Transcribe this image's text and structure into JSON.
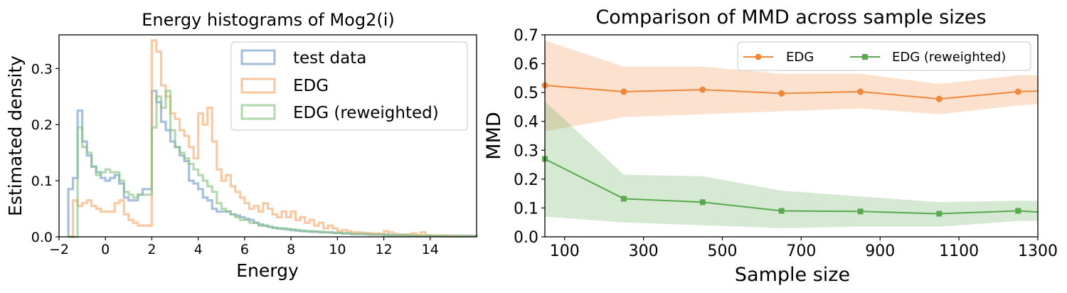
{
  "chart_data": [
    {
      "type": "histogram",
      "title": "Energy histograms of Mog2(i)",
      "xlabel": "Energy",
      "ylabel": "Estimated density",
      "xlim": [
        -2,
        16
      ],
      "ylim": [
        0,
        0.36
      ],
      "xticks": [
        -2,
        0,
        2,
        4,
        6,
        8,
        10,
        12,
        14
      ],
      "xtick_labels": [
        "−2",
        "0",
        "2",
        "4",
        "6",
        "8",
        "10",
        "12",
        "14"
      ],
      "yticks": [
        0.0,
        0.1,
        0.2,
        0.3
      ],
      "ytick_labels": [
        "0.0",
        "0.1",
        "0.2",
        "0.3"
      ],
      "legend_position": "top-right",
      "series": [
        {
          "name": "test data",
          "color": "#6f9ac9",
          "edges": [
            -1.6,
            -1.4,
            -1.2,
            -1.0,
            -0.8,
            -0.6,
            -0.4,
            -0.2,
            0.0,
            0.2,
            0.4,
            0.6,
            0.8,
            1.0,
            1.2,
            1.4,
            1.6,
            1.8,
            2.0,
            2.2,
            2.4,
            2.6,
            2.8,
            3.0,
            3.2,
            3.4,
            3.6,
            3.8,
            4.0,
            4.2,
            4.4,
            4.6,
            4.8,
            5.0,
            5.2,
            5.4,
            5.6,
            5.8,
            6.0,
            6.2,
            6.4,
            6.6,
            6.8,
            7.0,
            7.2,
            7.4,
            7.6,
            7.8,
            8.0,
            8.2,
            8.4,
            8.6,
            8.8,
            9.0,
            9.2,
            9.4,
            9.6,
            9.8,
            10.0,
            10.2,
            10.4,
            10.6,
            10.8,
            11.0,
            11.2,
            11.4,
            11.6,
            11.8,
            12.0,
            12.2,
            12.4,
            12.6,
            12.8,
            13.0,
            13.2,
            13.4,
            13.6,
            13.8,
            14.0,
            14.2,
            14.4,
            14.6,
            14.8,
            15.0,
            15.2,
            15.4,
            15.6,
            15.8,
            16.0
          ],
          "values": [
            0.085,
            0.105,
            0.225,
            0.17,
            0.145,
            0.125,
            0.115,
            0.105,
            0.1,
            0.105,
            0.11,
            0.095,
            0.07,
            0.065,
            0.065,
            0.075,
            0.085,
            0.085,
            0.26,
            0.24,
            0.205,
            0.19,
            0.17,
            0.16,
            0.145,
            0.135,
            0.1,
            0.095,
            0.085,
            0.07,
            0.065,
            0.05,
            0.045,
            0.045,
            0.045,
            0.04,
            0.038,
            0.035,
            0.032,
            0.03,
            0.025,
            0.022,
            0.02,
            0.018,
            0.016,
            0.015,
            0.014,
            0.013,
            0.012,
            0.011,
            0.01,
            0.01,
            0.009,
            0.009,
            0.008,
            0.008,
            0.008,
            0.007,
            0.007,
            0.006,
            0.006,
            0.005,
            0.005,
            0.005,
            0.005,
            0.004,
            0.004,
            0.004,
            0.004,
            0.003,
            0.003,
            0.003,
            0.003,
            0.002,
            0.002,
            0.002,
            0.002,
            0.002,
            0.002,
            0.002,
            0.002,
            0.002,
            0.002,
            0.002,
            0.002,
            0.002,
            0.002,
            0.002
          ]
        },
        {
          "name": "EDG",
          "color": "#f3a86a",
          "edges": [
            -1.6,
            -1.4,
            -1.2,
            -1.0,
            -0.8,
            -0.6,
            -0.4,
            -0.2,
            0.0,
            0.2,
            0.4,
            0.6,
            0.8,
            1.0,
            1.2,
            1.4,
            1.6,
            1.8,
            2.0,
            2.2,
            2.4,
            2.6,
            2.8,
            3.0,
            3.2,
            3.4,
            3.6,
            3.8,
            4.0,
            4.2,
            4.4,
            4.6,
            4.8,
            5.0,
            5.2,
            5.4,
            5.6,
            5.8,
            6.0,
            6.2,
            6.4,
            6.6,
            6.8,
            7.0,
            7.2,
            7.4,
            7.6,
            7.8,
            8.0,
            8.2,
            8.4,
            8.6,
            8.8,
            9.0,
            9.2,
            9.4,
            9.6,
            9.8,
            10.0,
            10.2,
            10.4,
            10.6,
            10.8,
            11.0,
            11.2,
            11.4,
            11.6,
            11.8,
            12.0,
            12.2,
            12.4,
            12.6,
            12.8,
            13.0,
            13.2,
            13.4,
            13.6,
            13.8,
            14.0,
            14.2,
            14.4,
            14.6,
            14.8,
            15.0,
            15.2,
            15.4,
            15.6,
            15.8,
            16.0
          ],
          "values": [
            0.0,
            0.065,
            0.055,
            0.06,
            0.065,
            0.055,
            0.05,
            0.045,
            0.045,
            0.045,
            0.06,
            0.065,
            0.04,
            0.03,
            0.025,
            0.02,
            0.02,
            0.02,
            0.35,
            0.33,
            0.27,
            0.25,
            0.22,
            0.21,
            0.19,
            0.18,
            0.16,
            0.14,
            0.22,
            0.2,
            0.23,
            0.17,
            0.12,
            0.1,
            0.11,
            0.09,
            0.08,
            0.07,
            0.06,
            0.05,
            0.055,
            0.045,
            0.06,
            0.05,
            0.04,
            0.035,
            0.045,
            0.035,
            0.045,
            0.03,
            0.035,
            0.025,
            0.03,
            0.02,
            0.025,
            0.015,
            0.02,
            0.015,
            0.01,
            0.012,
            0.01,
            0.008,
            0.008,
            0.007,
            0.007,
            0.006,
            0.006,
            0.005,
            0.01,
            0.008,
            0.005,
            0.004,
            0.004,
            0.004,
            0.006,
            0.003,
            0.008,
            0.003,
            0.002,
            0.002,
            0.002,
            0.002,
            0.002,
            0.001,
            0.001,
            0.001,
            0.001,
            0.001
          ]
        },
        {
          "name": "EDG (reweighted)",
          "color": "#87c481",
          "edges": [
            -1.6,
            -1.4,
            -1.2,
            -1.0,
            -0.8,
            -0.6,
            -0.4,
            -0.2,
            0.0,
            0.2,
            0.4,
            0.6,
            0.8,
            1.0,
            1.2,
            1.4,
            1.6,
            1.8,
            2.0,
            2.2,
            2.4,
            2.6,
            2.8,
            3.0,
            3.2,
            3.4,
            3.6,
            3.8,
            4.0,
            4.2,
            4.4,
            4.6,
            4.8,
            5.0,
            5.2,
            5.4,
            5.6,
            5.8,
            6.0,
            6.2,
            6.4,
            6.6,
            6.8,
            7.0,
            7.2,
            7.4,
            7.6,
            7.8,
            8.0,
            8.2,
            8.4,
            8.6,
            8.8,
            9.0,
            9.2,
            9.4,
            9.6,
            9.8,
            10.0,
            10.2,
            10.4,
            10.6,
            10.8,
            11.0,
            11.2,
            11.4,
            11.6,
            11.8,
            12.0,
            12.2,
            12.4,
            12.6,
            12.8,
            13.0,
            13.2,
            13.4,
            13.6,
            13.8,
            14.0,
            14.2,
            14.4,
            14.6,
            14.8,
            15.0,
            15.2,
            15.4,
            15.6,
            15.8,
            16.0
          ],
          "values": [
            0.0,
            0.0,
            0.195,
            0.16,
            0.15,
            0.125,
            0.11,
            0.115,
            0.12,
            0.115,
            0.115,
            0.1,
            0.08,
            0.075,
            0.07,
            0.075,
            0.075,
            0.075,
            0.195,
            0.25,
            0.23,
            0.26,
            0.19,
            0.16,
            0.15,
            0.14,
            0.13,
            0.12,
            0.11,
            0.1,
            0.09,
            0.08,
            0.06,
            0.05,
            0.045,
            0.04,
            0.035,
            0.03,
            0.03,
            0.025,
            0.025,
            0.02,
            0.02,
            0.018,
            0.016,
            0.015,
            0.015,
            0.014,
            0.013,
            0.012,
            0.011,
            0.01,
            0.01,
            0.009,
            0.009,
            0.008,
            0.008,
            0.007,
            0.007,
            0.006,
            0.006,
            0.005,
            0.005,
            0.005,
            0.004,
            0.004,
            0.004,
            0.004,
            0.003,
            0.003,
            0.003,
            0.003,
            0.003,
            0.003,
            0.002,
            0.002,
            0.002,
            0.002,
            0.002,
            0.002,
            0.002,
            0.001,
            0.001,
            0.001,
            0.001,
            0.001,
            0.001,
            0.001
          ]
        }
      ]
    },
    {
      "type": "line",
      "title": "Comparison of MMD across sample sizes",
      "xlabel": "Sample size",
      "ylabel": "MMD",
      "xlim": [
        50,
        1300
      ],
      "ylim": [
        0,
        0.7
      ],
      "xticks": [
        100,
        300,
        500,
        700,
        900,
        1100,
        1300
      ],
      "xtick_labels": [
        "100",
        "300",
        "500",
        "700",
        "900",
        "1100",
        "1300"
      ],
      "yticks": [
        0.0,
        0.1,
        0.2,
        0.3,
        0.4,
        0.5,
        0.6,
        0.7
      ],
      "ytick_labels": [
        "0.0",
        "0.1",
        "0.2",
        "0.3",
        "0.4",
        "0.5",
        "0.6",
        "0.7"
      ],
      "legend_position": "top-right",
      "x": [
        50,
        250,
        450,
        650,
        850,
        1050,
        1250,
        1300
      ],
      "markers_at": [
        50,
        250,
        450,
        650,
        850,
        1050,
        1250
      ],
      "series": [
        {
          "name": "EDG",
          "color": "#f0883a",
          "marker": "circle",
          "values": [
            0.525,
            0.503,
            0.51,
            0.497,
            0.503,
            0.478,
            0.503,
            0.505
          ],
          "lower": [
            0.365,
            0.415,
            0.425,
            0.435,
            0.445,
            0.425,
            0.455,
            0.46
          ],
          "upper": [
            0.68,
            0.59,
            0.59,
            0.565,
            0.565,
            0.53,
            0.56,
            0.56
          ]
        },
        {
          "name": "EDG (reweighted)",
          "color": "#5aa84f",
          "marker": "square",
          "values": [
            0.27,
            0.132,
            0.12,
            0.09,
            0.088,
            0.08,
            0.09,
            0.086
          ],
          "lower": [
            0.07,
            0.05,
            0.04,
            0.03,
            0.035,
            0.035,
            0.055,
            0.055
          ],
          "upper": [
            0.47,
            0.215,
            0.21,
            0.16,
            0.14,
            0.12,
            0.125,
            0.125
          ]
        }
      ]
    }
  ]
}
